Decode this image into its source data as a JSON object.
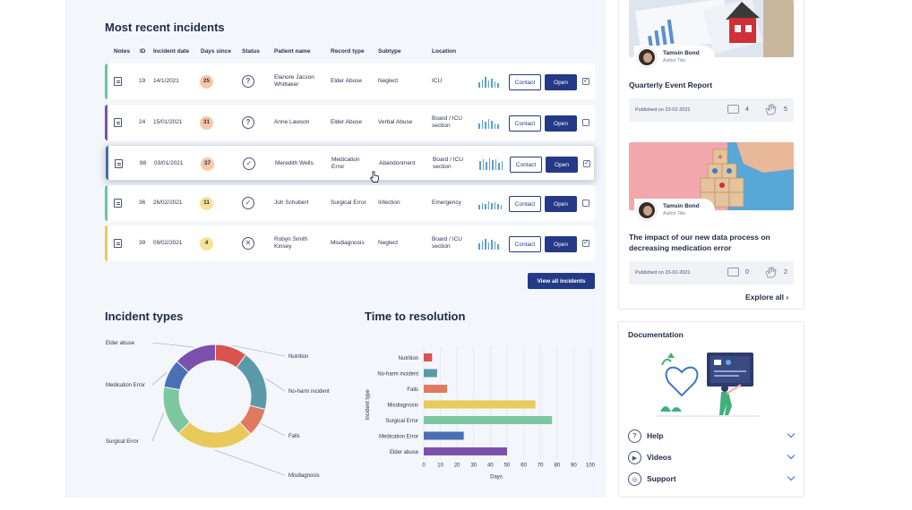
{
  "incidents": {
    "title": "Most recent incidents",
    "columns": [
      "Notes",
      "ID",
      "Incident date",
      "Days since",
      "Status",
      "Patient name",
      "Record type",
      "Subtype",
      "Location"
    ],
    "contact_label": "Contact",
    "open_label": "Open",
    "view_all_label": "View all incidents",
    "rows": [
      {
        "id": "19",
        "date": "14/1/2021",
        "days": "25",
        "status": "?",
        "patient": "Elanore Jacson Whittaker",
        "record": "Elder Abuse",
        "subtype": "Neglect",
        "location": "ICU",
        "color": "#6cc3a0",
        "badge_color": "#f7c8a8",
        "checked": true
      },
      {
        "id": "24",
        "date": "15/01/2021",
        "days": "31",
        "status": "?",
        "patient": "Anne Lawson",
        "record": "Elder Abuse",
        "subtype": "Verbal Abuse",
        "location": "Board / ICU section",
        "color": "#7b52ab",
        "badge_color": "#f7c8a8",
        "checked": false
      },
      {
        "id": "88",
        "date": "03/01/2021",
        "days": "37",
        "status": "✓",
        "patient": "Meredith Wells",
        "record": "Medication Error",
        "subtype": "Abandonment",
        "location": "Board / ICU section",
        "color": "#4a6aa8",
        "badge_color": "#f7c8a8",
        "checked": true
      },
      {
        "id": "36",
        "date": "26/02/2021",
        "days": "11",
        "status": "✓",
        "patient": "Joh Schubert",
        "record": "Surgical Error",
        "subtype": "Infection",
        "location": "Emergency",
        "color": "#6cc3a0",
        "badge_color": "#f8e29a",
        "checked": false
      },
      {
        "id": "39",
        "date": "09/02/2021",
        "days": "4",
        "status": "✕",
        "patient": "Robyn Smith Kinsey",
        "record": "Misdiagnosis",
        "subtype": "Neglect",
        "location": "Board / ICU section",
        "color": "#e8c95a",
        "badge_color": "#f8e29a",
        "checked": true
      }
    ]
  },
  "incident_types": {
    "title": "Incident types",
    "chart_data": {
      "type": "pie",
      "title": "Incident types",
      "labels": [
        "Nutrition",
        "No-harm incident",
        "Falls",
        "Misdiagnosis",
        "Surgical Error",
        "Medication Error",
        "Elder abuse"
      ],
      "values": [
        9,
        17,
        8,
        22,
        14,
        8,
        12
      ],
      "colors": [
        "#d9534f",
        "#5a9aa8",
        "#e07a5f",
        "#e8c95a",
        "#7cc7a0",
        "#4a6fb5",
        "#7b52ab"
      ]
    }
  },
  "time_to_resolution": {
    "title": "Time to resolution",
    "chart_data": {
      "type": "bar",
      "orientation": "horizontal",
      "title": "Time to resolution",
      "categories": [
        "Nutrition",
        "No-harm incident",
        "Falls",
        "Misdiagnosis",
        "Surgical Error",
        "Medication Error",
        "Elder abuse"
      ],
      "values": [
        5,
        8,
        14,
        67,
        77,
        24,
        50
      ],
      "colors": [
        "#d9534f",
        "#5a9aa8",
        "#e07a5f",
        "#e8c95a",
        "#7cc7a0",
        "#4a6fb5",
        "#7b52ab"
      ],
      "xlabel": "Days",
      "ylabel": "Incident type",
      "xlim": [
        0,
        100
      ],
      "xticks": [
        "0",
        "10",
        "20",
        "30",
        "40",
        "50",
        "60",
        "70",
        "80",
        "90",
        "100"
      ],
      "grid": true
    }
  },
  "news": {
    "cards": [
      {
        "author": "Tamsin Bond",
        "role": "Author Title",
        "title": "Quarterly Event Report",
        "published": "Published on 23-02-2021",
        "comments": "4",
        "claps": "5"
      },
      {
        "author": "Tamsin Bond",
        "role": "Author Title",
        "title": "The impact of our new data process on decreasing medication error",
        "published": "Published on 23-02-2021",
        "comments": "0",
        "claps": "2"
      }
    ],
    "explore_label": "Explore all"
  },
  "documentation": {
    "title": "Documentation",
    "items": [
      {
        "label": "Help",
        "icon": "question-icon"
      },
      {
        "label": "Videos",
        "icon": "play-icon"
      },
      {
        "label": "Support",
        "icon": "lifebuoy-icon"
      }
    ]
  }
}
